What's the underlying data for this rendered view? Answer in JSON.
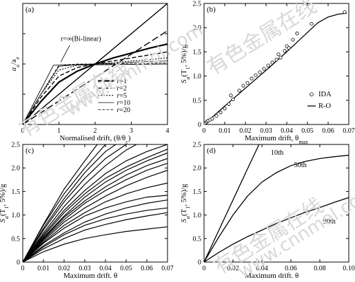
{
  "watermarks": [
    "有色金属在线",
    "www.cnnmol.com"
  ],
  "chart_data": [
    {
      "id": "a",
      "type": "line",
      "panel_label": "(a)",
      "xlabel": "Normalised drift, (θ/θ",
      "xlabel_sub": "c",
      "xlabel_tail": ")",
      "ylabel": "a",
      "ylabel_sub": "u",
      "ylabel_sep": "/a",
      "ylabel_sub2": "e",
      "xlim": [
        0,
        4
      ],
      "ylim": [
        0,
        2
      ],
      "x_ticks": [
        "0",
        "1",
        "2",
        "3",
        "4"
      ],
      "y_ticks": [],
      "annotation": "r=∞(Bi-linear)",
      "legend_prefix": "r",
      "series": [
        {
          "name": "=1",
          "dash": "",
          "width": 2.2,
          "x": [
            0,
            0.5,
            1,
            1.5,
            2,
            2.5,
            3,
            3.5,
            4
          ],
          "y": [
            0,
            0.38,
            0.7,
            0.88,
            1.0,
            1.1,
            1.18,
            1.26,
            1.33
          ]
        },
        {
          "name": "=2",
          "dash": "6 3",
          "width": 1.4,
          "x": [
            0,
            0.5,
            1,
            1.5,
            2,
            2.5,
            3,
            3.5,
            4
          ],
          "y": [
            0,
            0.45,
            0.8,
            0.94,
            1.0,
            1.05,
            1.1,
            1.15,
            1.2
          ]
        },
        {
          "name": "=5",
          "dash": "2 2",
          "width": 1.1,
          "x": [
            0,
            0.5,
            1,
            1.5,
            2,
            2.5,
            3,
            3.5,
            4
          ],
          "y": [
            0,
            0.5,
            0.9,
            0.98,
            1.0,
            1.02,
            1.05,
            1.07,
            1.1
          ]
        },
        {
          "name": "=10",
          "dash": "",
          "width": 0.8,
          "x": [
            0,
            0.5,
            1,
            1.5,
            2,
            2.5,
            3,
            3.5,
            4
          ],
          "y": [
            0,
            0.5,
            0.96,
            0.99,
            1.0,
            1.01,
            1.03,
            1.04,
            1.05
          ]
        },
        {
          "name": "=20",
          "dash": "4 2",
          "width": 0.8,
          "x": [
            0,
            0.5,
            1,
            1.5,
            2,
            2.5,
            3,
            3.5,
            4
          ],
          "y": [
            0,
            0.5,
            0.98,
            1.0,
            1.0,
            1.0,
            1.01,
            1.01,
            1.02
          ]
        }
      ],
      "extra_lines": [
        {
          "x": [
            0,
            4
          ],
          "y": [
            0,
            2.0
          ],
          "dash": "",
          "width": 1.4
        },
        {
          "x": [
            0,
            4
          ],
          "y": [
            0,
            1.55
          ],
          "dash": "10 4",
          "width": 1.4
        },
        {
          "x": [
            0,
            0.85,
            4
          ],
          "y": [
            0,
            0.98,
            1.0
          ],
          "dash": "",
          "width": 0.9
        }
      ]
    },
    {
      "id": "b",
      "type": "scatter",
      "panel_label": "(b)",
      "xlabel": "Maximum drift, θ",
      "xlabel_sub": "max",
      "ylabel": "S",
      "ylabel_sub": "a",
      "ylabel_tail": "(T",
      "ylabel_sub2": "1",
      "ylabel_tail2": ", 5%)/g",
      "xlim": [
        0,
        0.07
      ],
      "ylim": [
        0,
        2.5
      ],
      "x_ticks": [
        "0",
        "0.01",
        "0.02",
        "0.03",
        "0.04",
        "0.05",
        "0.06",
        "0.07"
      ],
      "y_ticks": [
        "0",
        "0.5",
        "1.0",
        "1.5",
        "2.0",
        "2.5"
      ],
      "legend": [
        "IDA",
        "R-O"
      ],
      "series": [
        {
          "name": "IDA",
          "x": [
            0.0005,
            0.001,
            0.0015,
            0.002,
            0.003,
            0.004,
            0.006,
            0.008,
            0.01,
            0.012,
            0.013,
            0.014,
            0.017,
            0.019,
            0.021,
            0.023,
            0.025,
            0.027,
            0.029,
            0.031,
            0.033,
            0.035,
            0.036,
            0.037,
            0.039,
            0.04,
            0.041,
            0.043,
            0.045,
            0.052,
            0.068
          ],
          "y": [
            0.02,
            0.04,
            0.06,
            0.08,
            0.1,
            0.12,
            0.18,
            0.25,
            0.33,
            0.42,
            0.6,
            0.52,
            0.7,
            0.8,
            0.86,
            0.95,
            1.02,
            1.08,
            1.15,
            1.22,
            1.28,
            1.34,
            1.45,
            1.38,
            1.52,
            1.62,
            1.58,
            1.75,
            1.88,
            2.08,
            2.32
          ]
        },
        {
          "name": "R-O",
          "x": [
            0,
            0.01,
            0.02,
            0.03,
            0.04,
            0.045,
            0.05,
            0.055,
            0.06,
            0.065,
            0.069
          ],
          "y": [
            0,
            0.38,
            0.75,
            1.12,
            1.5,
            1.7,
            1.9,
            2.1,
            2.22,
            2.28,
            2.3
          ]
        }
      ]
    },
    {
      "id": "c",
      "type": "line",
      "panel_label": "(c)",
      "xlabel": "Maximum drift, θ",
      "xlabel_sub": "max",
      "ylabel": "S",
      "ylabel_sub": "a",
      "ylabel_tail": "(T",
      "ylabel_sub2": "1",
      "ylabel_tail2": ", 5%)/g",
      "xlim": [
        0,
        0.07
      ],
      "ylim": [
        0,
        2.5
      ],
      "x_ticks": [
        "0",
        "0.01",
        "0.02",
        "0.03",
        "0.04",
        "0.05",
        "0.06",
        "0.07"
      ],
      "y_ticks": [
        "0",
        "0.5",
        "1.0",
        "1.5",
        "2.0",
        "2.5"
      ],
      "curves": [
        {
          "x": [
            0,
            0.01,
            0.02,
            0.03,
            0.036
          ],
          "y": [
            0,
            0.8,
            1.55,
            2.15,
            2.5
          ]
        },
        {
          "x": [
            0,
            0.01,
            0.02,
            0.03,
            0.04
          ],
          "y": [
            0,
            0.78,
            1.45,
            2.0,
            2.5
          ]
        },
        {
          "x": [
            0,
            0.01,
            0.02,
            0.03,
            0.04,
            0.045
          ],
          "y": [
            0,
            0.72,
            1.35,
            1.9,
            2.35,
            2.5
          ]
        },
        {
          "x": [
            0,
            0.01,
            0.02,
            0.03,
            0.04,
            0.05
          ],
          "y": [
            0,
            0.68,
            1.28,
            1.78,
            2.2,
            2.5
          ]
        },
        {
          "x": [
            0,
            0.01,
            0.02,
            0.03,
            0.04,
            0.05,
            0.055
          ],
          "y": [
            0,
            0.62,
            1.18,
            1.65,
            2.05,
            2.38,
            2.5
          ]
        },
        {
          "x": [
            0,
            0.01,
            0.02,
            0.03,
            0.04,
            0.05,
            0.06,
            0.07
          ],
          "y": [
            0,
            0.58,
            1.1,
            1.52,
            1.88,
            2.15,
            2.35,
            2.5
          ]
        },
        {
          "x": [
            0,
            0.01,
            0.02,
            0.03,
            0.04,
            0.05,
            0.06,
            0.07
          ],
          "y": [
            0,
            0.55,
            1.05,
            1.45,
            1.78,
            2.02,
            2.22,
            2.4
          ]
        },
        {
          "x": [
            0,
            0.01,
            0.02,
            0.03,
            0.04,
            0.05,
            0.06,
            0.07
          ],
          "y": [
            0,
            0.52,
            0.98,
            1.38,
            1.7,
            1.95,
            2.15,
            2.32
          ]
        },
        {
          "x": [
            0,
            0.01,
            0.02,
            0.03,
            0.04,
            0.05,
            0.06,
            0.07
          ],
          "y": [
            0,
            0.5,
            0.95,
            1.3,
            1.6,
            1.85,
            2.05,
            2.2
          ]
        },
        {
          "x": [
            0,
            0.01,
            0.02,
            0.03,
            0.04,
            0.05,
            0.06,
            0.07
          ],
          "y": [
            0,
            0.48,
            0.9,
            1.25,
            1.52,
            1.75,
            1.95,
            2.1
          ]
        },
        {
          "x": [
            0,
            0.01,
            0.02,
            0.03,
            0.04,
            0.05,
            0.06,
            0.07
          ],
          "y": [
            0,
            0.45,
            0.85,
            1.15,
            1.4,
            1.62,
            1.8,
            1.95
          ]
        },
        {
          "x": [
            0,
            0.01,
            0.02,
            0.03,
            0.04,
            0.05,
            0.06,
            0.07
          ],
          "y": [
            0,
            0.42,
            0.78,
            1.05,
            1.28,
            1.45,
            1.58,
            1.68
          ]
        },
        {
          "x": [
            0,
            0.01,
            0.02,
            0.03,
            0.04,
            0.05,
            0.06,
            0.07
          ],
          "y": [
            0,
            0.4,
            0.72,
            0.98,
            1.15,
            1.28,
            1.38,
            1.42
          ]
        },
        {
          "x": [
            0,
            0.01,
            0.02,
            0.03,
            0.04,
            0.05,
            0.06,
            0.07
          ],
          "y": [
            0,
            0.35,
            0.62,
            0.85,
            1.02,
            1.15,
            1.25,
            1.32
          ]
        },
        {
          "x": [
            0,
            0.01,
            0.02,
            0.03,
            0.04,
            0.05,
            0.06,
            0.07
          ],
          "y": [
            0,
            0.32,
            0.58,
            0.78,
            0.92,
            1.02,
            1.1,
            1.15
          ]
        },
        {
          "x": [
            0,
            0.01,
            0.02,
            0.03,
            0.04,
            0.05,
            0.06,
            0.07
          ],
          "y": [
            0,
            0.28,
            0.5,
            0.68,
            0.8,
            0.9,
            0.98,
            1.05
          ]
        },
        {
          "x": [
            0,
            0.01,
            0.02,
            0.03,
            0.04,
            0.05,
            0.06,
            0.07
          ],
          "y": [
            0,
            0.22,
            0.38,
            0.5,
            0.58,
            0.65,
            0.7,
            0.75
          ]
        }
      ]
    },
    {
      "id": "d",
      "type": "line",
      "panel_label": "(d)",
      "xlabel": "Maximum drift, θ",
      "xlabel_sub": "max",
      "ylabel": "S",
      "ylabel_sub": "a",
      "ylabel_tail": "(T",
      "ylabel_sub2": "1",
      "ylabel_tail2": ", 5%)/g",
      "xlim": [
        0,
        0.1
      ],
      "ylim": [
        0,
        2.5
      ],
      "x_ticks": [
        "0",
        "0.02",
        "0.04",
        "0.06",
        "0.08",
        "0.10"
      ],
      "y_ticks": [
        "0",
        "0.5",
        "1.0",
        "1.5",
        "2.0",
        "2.5"
      ],
      "series": [
        {
          "name": "10th",
          "x": [
            0,
            0.01,
            0.02,
            0.03,
            0.038
          ],
          "y": [
            0,
            0.66,
            1.32,
            1.98,
            2.5
          ]
        },
        {
          "name": "50th",
          "x": [
            0,
            0.01,
            0.02,
            0.03,
            0.04,
            0.05,
            0.06,
            0.07,
            0.08,
            0.09,
            0.1
          ],
          "y": [
            0,
            0.52,
            1.0,
            1.4,
            1.7,
            1.9,
            2.05,
            2.14,
            2.2,
            2.24,
            2.27
          ]
        },
        {
          "name": "90th",
          "x": [
            0,
            0.01,
            0.02,
            0.03,
            0.04,
            0.05,
            0.06,
            0.07,
            0.08,
            0.09,
            0.1
          ],
          "y": [
            0,
            0.2,
            0.38,
            0.54,
            0.68,
            0.82,
            0.94,
            1.06,
            1.16,
            1.27,
            1.37
          ]
        }
      ]
    }
  ]
}
